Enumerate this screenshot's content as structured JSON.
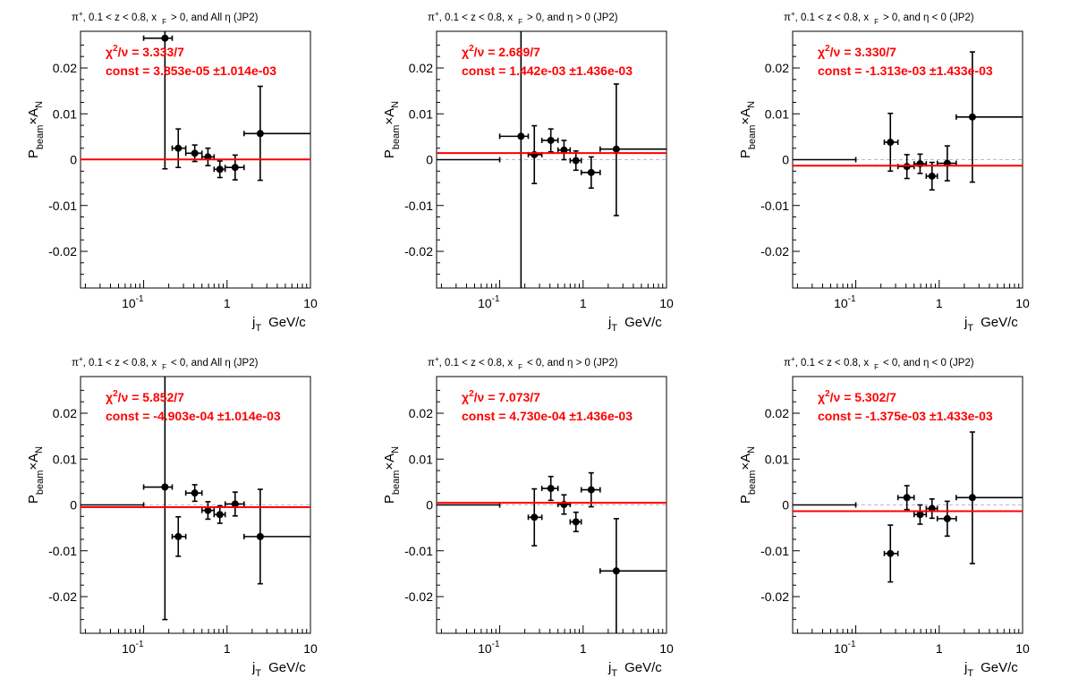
{
  "x_axis": {
    "label_main": "j",
    "label_sub": "T",
    "label_unit": "GeV/c",
    "ticks": [
      {
        "value": 0.1,
        "base": "10",
        "exp": "-1"
      },
      {
        "value": 1,
        "base": "1",
        "exp": ""
      },
      {
        "value": 10,
        "base": "10",
        "exp": ""
      }
    ],
    "scale": "log",
    "xlim": [
      0.0175,
      10
    ]
  },
  "y_axis": {
    "label_p": "P",
    "label_p_sub": "beam",
    "label_times": "×A",
    "label_a_sub": "N",
    "ticks": [
      "0.02",
      "0.01",
      "0",
      "-0.01",
      "-0.02"
    ],
    "tick_values": [
      0.02,
      0.01,
      0,
      -0.01,
      -0.02
    ],
    "ylim": [
      -0.028,
      0.028
    ]
  },
  "colors": {
    "fit": "#ff0000",
    "points": "#000000",
    "zero_line": "#b8b8c8"
  },
  "chart_data": [
    {
      "type": "scatter",
      "title_prefix": "π",
      "title_sup": "+",
      "title_mid": ", 0.1 < z < 0.8, x",
      "title_sub": "F",
      "title_end": "> 0, and All  η (JP2)",
      "chi2_label": "χ",
      "chi2_sup": "2",
      "chi2_rest": "/ν = 3.333/7",
      "const_label": "const = 3.853e-05  ±1.014e-03",
      "fit_const": 3.853e-05,
      "points": [
        {
          "x": 0.18,
          "xlo": 0.1,
          "xhi": 0.22,
          "y": 0.0265,
          "ylo": -0.002,
          "yhi": 0.028
        },
        {
          "x": 0.26,
          "xlo": 0.22,
          "xhi": 0.32,
          "y": 0.0025,
          "ylo": -0.0017,
          "yhi": 0.0067
        },
        {
          "x": 0.41,
          "xlo": 0.32,
          "xhi": 0.5,
          "y": 0.0014,
          "ylo": -0.0004,
          "yhi": 0.0032
        },
        {
          "x": 0.59,
          "xlo": 0.5,
          "xhi": 0.7,
          "y": 0.0006,
          "ylo": -0.0013,
          "yhi": 0.0025
        },
        {
          "x": 0.82,
          "xlo": 0.7,
          "xhi": 0.95,
          "y": -0.0021,
          "ylo": -0.0039,
          "yhi": -0.0003
        },
        {
          "x": 1.25,
          "xlo": 0.95,
          "xhi": 1.6,
          "y": -0.0017,
          "ylo": -0.0044,
          "yhi": 0.001
        },
        {
          "x": 2.5,
          "xlo": 1.6,
          "xhi": 10,
          "y": 0.0057,
          "ylo": -0.0045,
          "yhi": 0.016
        }
      ]
    },
    {
      "type": "scatter",
      "title_prefix": "π",
      "title_sup": "+",
      "title_mid": ", 0.1 < z < 0.8, x",
      "title_sub": "F",
      "title_end": "> 0, and  η > 0 (JP2)",
      "chi2_label": "χ",
      "chi2_sup": "2",
      "chi2_rest": "/ν = 2.689/7",
      "const_label": "const = 1.442e-03  ±1.436e-03",
      "fit_const": 0.001442,
      "points": [
        {
          "x": 0.0175,
          "xlo": 0.0175,
          "xhi": 0.1,
          "y": 0.0,
          "ylo": 0.0,
          "yhi": 0.0
        },
        {
          "x": 0.18,
          "xlo": 0.1,
          "xhi": 0.22,
          "y": 0.0051,
          "ylo": -0.028,
          "yhi": 0.028
        },
        {
          "x": 0.26,
          "xlo": 0.22,
          "xhi": 0.32,
          "y": 0.0011,
          "ylo": -0.0052,
          "yhi": 0.0074
        },
        {
          "x": 0.41,
          "xlo": 0.32,
          "xhi": 0.5,
          "y": 0.0042,
          "ylo": 0.0017,
          "yhi": 0.0067
        },
        {
          "x": 0.59,
          "xlo": 0.5,
          "xhi": 0.7,
          "y": 0.0021,
          "ylo": 0.0,
          "yhi": 0.0042
        },
        {
          "x": 0.82,
          "xlo": 0.7,
          "xhi": 0.95,
          "y": -0.0002,
          "ylo": -0.0023,
          "yhi": 0.0019
        },
        {
          "x": 1.25,
          "xlo": 0.95,
          "xhi": 1.6,
          "y": -0.0028,
          "ylo": -0.0062,
          "yhi": 0.0006
        },
        {
          "x": 2.5,
          "xlo": 1.6,
          "xhi": 10,
          "y": 0.0023,
          "ylo": -0.0122,
          "yhi": 0.0165
        }
      ]
    },
    {
      "type": "scatter",
      "title_prefix": "π",
      "title_sup": "+",
      "title_mid": ", 0.1 < z < 0.8, x",
      "title_sub": "F",
      "title_end": "> 0, and  η < 0 (JP2)",
      "chi2_label": "χ",
      "chi2_sup": "2",
      "chi2_rest": "/ν = 3.330/7",
      "const_label": "const = -1.313e-03  ±1.433e-03",
      "fit_const": -0.001313,
      "points": [
        {
          "x": 0.0175,
          "xlo": 0.0175,
          "xhi": 0.1,
          "y": 0.0,
          "ylo": 0.0,
          "yhi": 0.0
        },
        {
          "x": 0.26,
          "xlo": 0.22,
          "xhi": 0.32,
          "y": 0.0038,
          "ylo": -0.0025,
          "yhi": 0.0101
        },
        {
          "x": 0.41,
          "xlo": 0.32,
          "xhi": 0.5,
          "y": -0.0015,
          "ylo": -0.0041,
          "yhi": 0.0011
        },
        {
          "x": 0.59,
          "xlo": 0.5,
          "xhi": 0.7,
          "y": -0.0009,
          "ylo": -0.003,
          "yhi": 0.0012
        },
        {
          "x": 0.82,
          "xlo": 0.7,
          "xhi": 0.95,
          "y": -0.0036,
          "ylo": -0.0066,
          "yhi": -0.0006
        },
        {
          "x": 1.25,
          "xlo": 0.95,
          "xhi": 1.6,
          "y": -0.0008,
          "ylo": -0.0046,
          "yhi": 0.003
        },
        {
          "x": 2.5,
          "xlo": 1.6,
          "xhi": 10,
          "y": 0.0093,
          "ylo": -0.0049,
          "yhi": 0.0235
        }
      ]
    },
    {
      "type": "scatter",
      "title_prefix": "π",
      "title_sup": "+",
      "title_mid": ", 0.1 < z < 0.8, x",
      "title_sub": "F",
      "title_end": "< 0, and All  η (JP2)",
      "chi2_label": "χ",
      "chi2_sup": "2",
      "chi2_rest": "/ν = 5.852/7",
      "const_label": "const = -4.903e-04  ±1.014e-03",
      "fit_const": -0.0004903,
      "points": [
        {
          "x": 0.0175,
          "xlo": 0.0175,
          "xhi": 0.1,
          "y": 0.0,
          "ylo": 0.0,
          "yhi": 0.0
        },
        {
          "x": 0.18,
          "xlo": 0.1,
          "xhi": 0.22,
          "y": 0.0039,
          "ylo": -0.025,
          "yhi": 0.028
        },
        {
          "x": 0.26,
          "xlo": 0.22,
          "xhi": 0.32,
          "y": -0.0069,
          "ylo": -0.0112,
          "yhi": -0.0026
        },
        {
          "x": 0.41,
          "xlo": 0.32,
          "xhi": 0.5,
          "y": 0.0026,
          "ylo": 0.0008,
          "yhi": 0.0044
        },
        {
          "x": 0.59,
          "xlo": 0.5,
          "xhi": 0.7,
          "y": -0.0012,
          "ylo": -0.0031,
          "yhi": 0.0007
        },
        {
          "x": 0.82,
          "xlo": 0.7,
          "xhi": 0.95,
          "y": -0.0021,
          "ylo": -0.004,
          "yhi": -0.0002
        },
        {
          "x": 1.25,
          "xlo": 0.95,
          "xhi": 1.6,
          "y": 0.0002,
          "ylo": -0.0024,
          "yhi": 0.0028
        },
        {
          "x": 2.5,
          "xlo": 1.6,
          "xhi": 10,
          "y": -0.0069,
          "ylo": -0.0172,
          "yhi": 0.0034
        }
      ]
    },
    {
      "type": "scatter",
      "title_prefix": "π",
      "title_sup": "+",
      "title_mid": ", 0.1 < z < 0.8, x",
      "title_sub": "F",
      "title_end": "< 0, and  η > 0 (JP2)",
      "chi2_label": "χ",
      "chi2_sup": "2",
      "chi2_rest": "/ν = 7.073/7",
      "const_label": "const = 4.730e-04  ±1.436e-03",
      "fit_const": 0.000473,
      "points": [
        {
          "x": 0.0175,
          "xlo": 0.0175,
          "xhi": 0.1,
          "y": 0.0,
          "ylo": 0.0,
          "yhi": 0.0
        },
        {
          "x": 0.26,
          "xlo": 0.22,
          "xhi": 0.32,
          "y": -0.0027,
          "ylo": -0.0089,
          "yhi": 0.0035
        },
        {
          "x": 0.41,
          "xlo": 0.32,
          "xhi": 0.5,
          "y": 0.0036,
          "ylo": 0.001,
          "yhi": 0.0062
        },
        {
          "x": 0.59,
          "xlo": 0.5,
          "xhi": 0.7,
          "y": 0.0001,
          "ylo": -0.002,
          "yhi": 0.0022
        },
        {
          "x": 0.82,
          "xlo": 0.7,
          "xhi": 0.95,
          "y": -0.0037,
          "ylo": -0.0058,
          "yhi": -0.0016
        },
        {
          "x": 1.25,
          "xlo": 0.95,
          "xhi": 1.6,
          "y": 0.0033,
          "ylo": -0.0004,
          "yhi": 0.007
        },
        {
          "x": 2.5,
          "xlo": 1.6,
          "xhi": 10,
          "y": -0.0144,
          "ylo": -0.028,
          "yhi": -0.003
        }
      ]
    },
    {
      "type": "scatter",
      "title_prefix": "π",
      "title_sup": "+",
      "title_mid": ", 0.1 < z < 0.8, x",
      "title_sub": "F",
      "title_end": "< 0, and  η < 0 (JP2)",
      "chi2_label": "χ",
      "chi2_sup": "2",
      "chi2_rest": "/ν = 5.302/7",
      "const_label": "const = -1.375e-03  ±1.433e-03",
      "fit_const": -0.001375,
      "points": [
        {
          "x": 0.0175,
          "xlo": 0.0175,
          "xhi": 0.1,
          "y": 0.0,
          "ylo": 0.0,
          "yhi": 0.0
        },
        {
          "x": 0.26,
          "xlo": 0.22,
          "xhi": 0.32,
          "y": -0.0106,
          "ylo": -0.0168,
          "yhi": -0.0044
        },
        {
          "x": 0.41,
          "xlo": 0.32,
          "xhi": 0.5,
          "y": 0.0016,
          "ylo": -0.001,
          "yhi": 0.0042
        },
        {
          "x": 0.59,
          "xlo": 0.5,
          "xhi": 0.7,
          "y": -0.0021,
          "ylo": -0.0042,
          "yhi": 0.0
        },
        {
          "x": 0.82,
          "xlo": 0.7,
          "xhi": 0.95,
          "y": -0.0008,
          "ylo": -0.0029,
          "yhi": 0.0013
        },
        {
          "x": 1.25,
          "xlo": 0.95,
          "xhi": 1.6,
          "y": -0.003,
          "ylo": -0.0068,
          "yhi": 0.0008
        },
        {
          "x": 2.5,
          "xlo": 1.6,
          "xhi": 10,
          "y": 0.0016,
          "ylo": -0.0128,
          "yhi": 0.0159
        }
      ]
    }
  ]
}
